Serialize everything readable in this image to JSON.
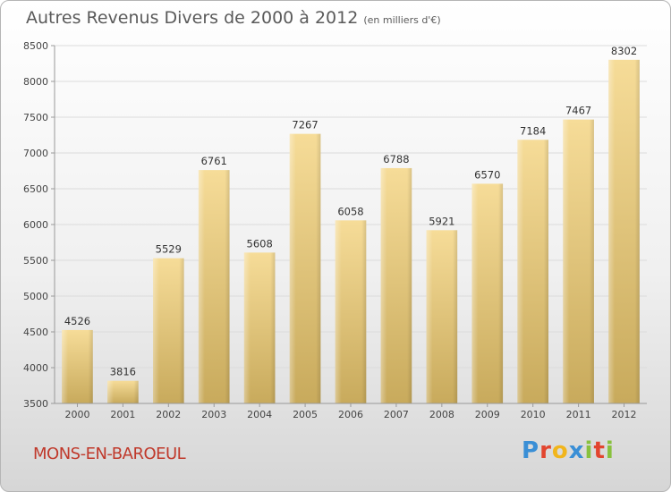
{
  "header": {
    "title": "Autres Revenus Divers de 2000 à 2012",
    "subtitle": "(en milliers d'€)"
  },
  "footer": {
    "town": "MONS-EN-BAROEUL",
    "brand": "Proxiti"
  },
  "colors": {
    "bar_top": "#f6dc98",
    "bar_bottom": "#c8aa5c",
    "town": "#c0392b",
    "brand_letters": [
      "#3a8fd6",
      "#e2452f",
      "#f1b51c",
      "#3a8fd6",
      "#88c13e",
      "#e2452f",
      "#88c13e"
    ]
  },
  "chart_data": {
    "type": "bar",
    "title": "Autres Revenus Divers de 2000 à 2012",
    "subtitle": "(en milliers d'€)",
    "categories": [
      "2000",
      "2001",
      "2002",
      "2003",
      "2004",
      "2005",
      "2006",
      "2007",
      "2008",
      "2009",
      "2010",
      "2011",
      "2012"
    ],
    "values": [
      4526,
      3816,
      5529,
      6761,
      5608,
      7267,
      6058,
      6788,
      5921,
      6570,
      7184,
      7467,
      8302
    ],
    "ylim": [
      3500,
      8500
    ],
    "yticks": [
      3500,
      4000,
      4500,
      5000,
      5500,
      6000,
      6500,
      7000,
      7500,
      8000,
      8500
    ],
    "grid": true,
    "data_labels": true
  }
}
